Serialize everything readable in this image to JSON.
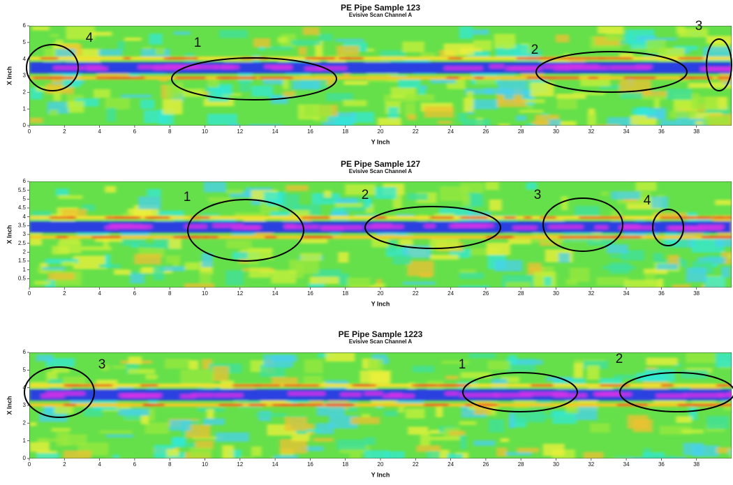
{
  "chart_data": [
    {
      "type": "heatmap",
      "title": "PE Pipe Sample 123",
      "subtitle": "Evisive Scan Channel A",
      "xlabel": "Y Inch",
      "ylabel": "X Inch",
      "xlim": [
        0,
        40
      ],
      "xticks": [
        0,
        2,
        4,
        6,
        8,
        10,
        12,
        14,
        16,
        18,
        20,
        22,
        24,
        26,
        28,
        30,
        32,
        34,
        36,
        38
      ],
      "ylim": [
        0,
        6
      ],
      "yticks": [
        0,
        1,
        2,
        3,
        4,
        5,
        6
      ],
      "annotations": [
        "4",
        "1",
        "2",
        "3"
      ]
    },
    {
      "type": "heatmap",
      "title": "PE Pipe Sample 127",
      "subtitle": "Evisive Scan Channel A",
      "xlabel": "Y Inch",
      "ylabel": "X Inch",
      "xlim": [
        0,
        40
      ],
      "xticks": [
        0,
        2,
        4,
        6,
        8,
        10,
        12,
        14,
        16,
        18,
        20,
        22,
        24,
        26,
        28,
        30,
        32,
        34,
        36,
        38
      ],
      "ylim": [
        0,
        6
      ],
      "yticks": [
        0.5,
        1,
        1.5,
        2,
        2.5,
        3,
        3.5,
        4,
        4.5,
        5,
        5.5,
        6
      ],
      "annotations": [
        "1",
        "2",
        "3",
        "4"
      ]
    },
    {
      "type": "heatmap",
      "title": "PE Pipe Sample 1223",
      "subtitle": "Evisive Scan Channel A",
      "xlabel": "Y Inch",
      "ylabel": "X Inch",
      "xlim": [
        0,
        40
      ],
      "xticks": [
        0,
        2,
        4,
        6,
        8,
        10,
        12,
        14,
        16,
        18,
        20,
        22,
        24,
        26,
        28,
        30,
        32,
        34,
        36,
        38
      ],
      "ylim": [
        0,
        6
      ],
      "yticks": [
        0,
        1,
        2,
        3,
        4,
        5,
        6
      ],
      "annotations": [
        "3",
        "1",
        "2"
      ]
    }
  ]
}
